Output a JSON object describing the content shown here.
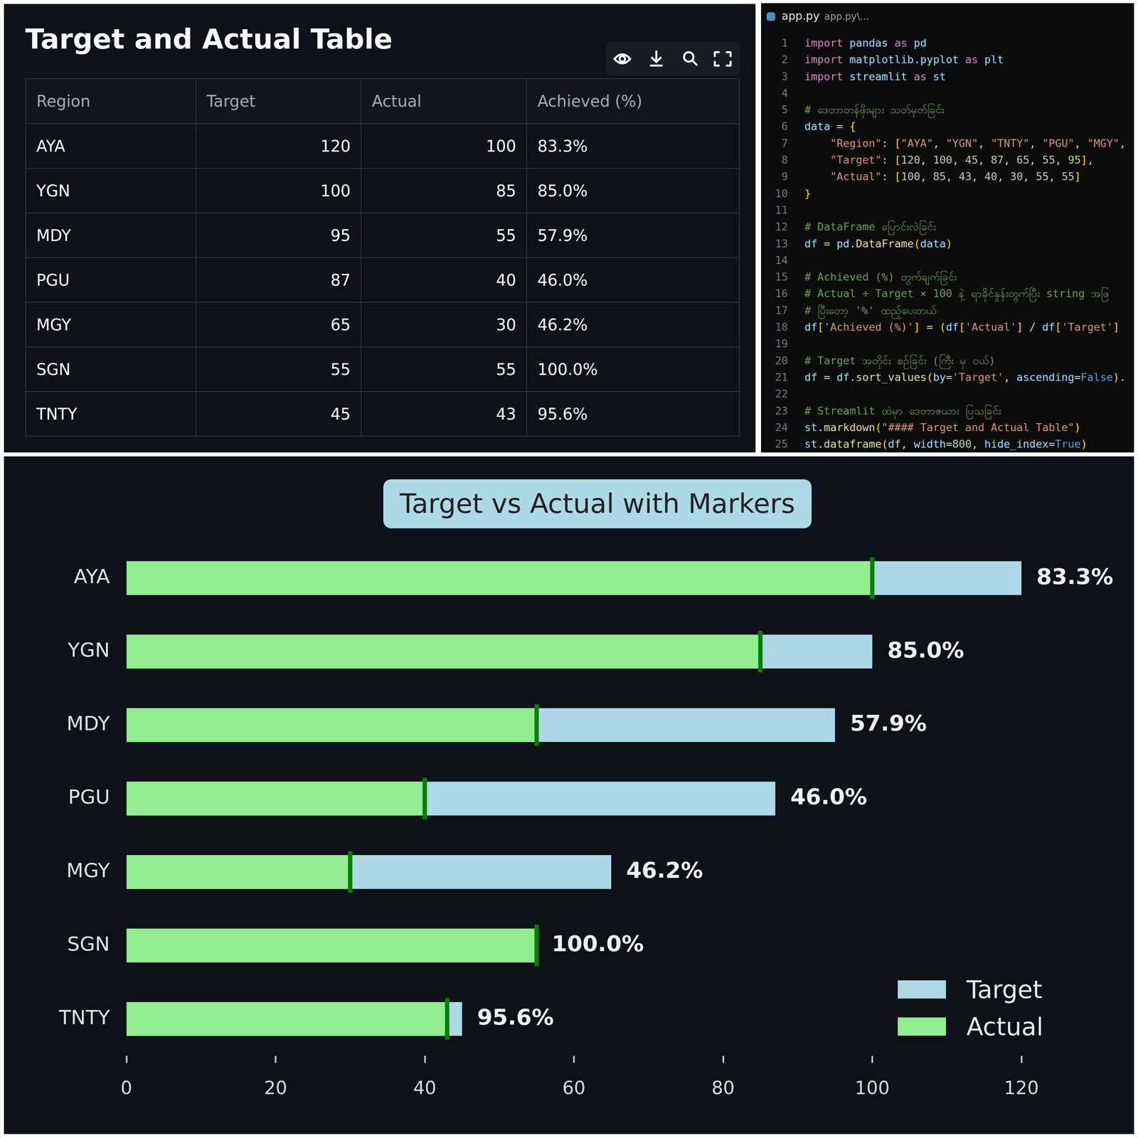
{
  "table_view": {
    "title": "Target and Actual Table",
    "columns": [
      "Region",
      "Target",
      "Actual",
      "Achieved (%)"
    ],
    "rows": [
      [
        "AYA",
        120,
        100,
        "83.3%"
      ],
      [
        "YGN",
        100,
        85,
        "85.0%"
      ],
      [
        "MDY",
        95,
        55,
        "57.9%"
      ],
      [
        "PGU",
        87,
        40,
        "46.0%"
      ],
      [
        "MGY",
        65,
        30,
        "46.2%"
      ],
      [
        "SGN",
        55,
        55,
        "100.0%"
      ],
      [
        "TNTY",
        45,
        43,
        "95.6%"
      ]
    ]
  },
  "editor": {
    "tab": "app.py",
    "path": "app.py\\...",
    "lines": [
      {
        "n": 1,
        "text": "import pandas as pd"
      },
      {
        "n": 2,
        "text": "import matplotlib.pyplot as plt"
      },
      {
        "n": 3,
        "text": "import streamlit as st"
      },
      {
        "n": 4
      },
      {
        "n": 5,
        "text": "# ဒေတာတန်ဖိုးများ သတ်မှတ်ခြင်း"
      },
      {
        "n": 6,
        "text": "data = {"
      },
      {
        "n": 7,
        "text": "    \"Region\": [\"AYA\", \"YGN\", \"TNTY\", \"PGU\", \"MGY\","
      },
      {
        "n": 8,
        "text": "    \"Target\": [120, 100, 45, 87, 65, 55, 95],"
      },
      {
        "n": 9,
        "text": "    \"Actual\": [100, 85, 43, 40, 30, 55, 55]"
      },
      {
        "n": 10,
        "text": "}"
      },
      {
        "n": 11
      },
      {
        "n": 12,
        "text": "# DataFrame ပြောင်းလဲခြင်း"
      },
      {
        "n": 13,
        "text": "df = pd.DataFrame(data)"
      },
      {
        "n": 14
      },
      {
        "n": 15,
        "text": "# Achieved (%) တွက်ချက်ခြင်း"
      },
      {
        "n": 16,
        "text": "# Actual ÷ Target × 100 နဲ့ ရာခိုင်နှုန်းတွက်ပြီး string အဖြ"
      },
      {
        "n": 17,
        "text": "# ပြီးတော့ '%' ထည့်ပေးတယ်"
      },
      {
        "n": 18,
        "text": "df['Achieved (%)'] = (df['Actual'] / df['Target']"
      },
      {
        "n": 19
      },
      {
        "n": 20,
        "text": "# Target အတိုင်း စဉ်ခြင်း (ကြီး မှ ငယ်)"
      },
      {
        "n": 21,
        "text": "df = df.sort_values(by='Target', ascending=False)."
      },
      {
        "n": 22
      },
      {
        "n": 23,
        "text": "# Streamlit ထဲမှာ ဒေတာဇယား ပြသခြင်း"
      },
      {
        "n": 24,
        "text": "st.markdown(\"#### Target and Actual Table\")"
      },
      {
        "n": 25,
        "text": "st.dataframe(df, width=800, hide_index=True)"
      }
    ]
  },
  "chart_data": {
    "type": "bar",
    "title": "Target vs Actual with Markers",
    "orientation": "horizontal",
    "categories": [
      "AYA",
      "YGN",
      "MDY",
      "PGU",
      "MGY",
      "SGN",
      "TNTY"
    ],
    "series": [
      {
        "name": "Target",
        "color": "#add8e6",
        "values": [
          120,
          100,
          95,
          87,
          65,
          55,
          45
        ]
      },
      {
        "name": "Actual",
        "color": "#90ee90",
        "values": [
          100,
          85,
          55,
          40,
          30,
          55,
          43
        ],
        "marker": "line"
      }
    ],
    "annotations": [
      "83.3%",
      "85.0%",
      "57.9%",
      "46.0%",
      "46.2%",
      "100.0%",
      "95.6%"
    ],
    "xlim": [
      0,
      120
    ],
    "xticks": [
      0,
      20,
      40,
      60,
      80,
      100,
      120
    ],
    "grid": false,
    "legend": "lower right",
    "data_labels": false
  }
}
